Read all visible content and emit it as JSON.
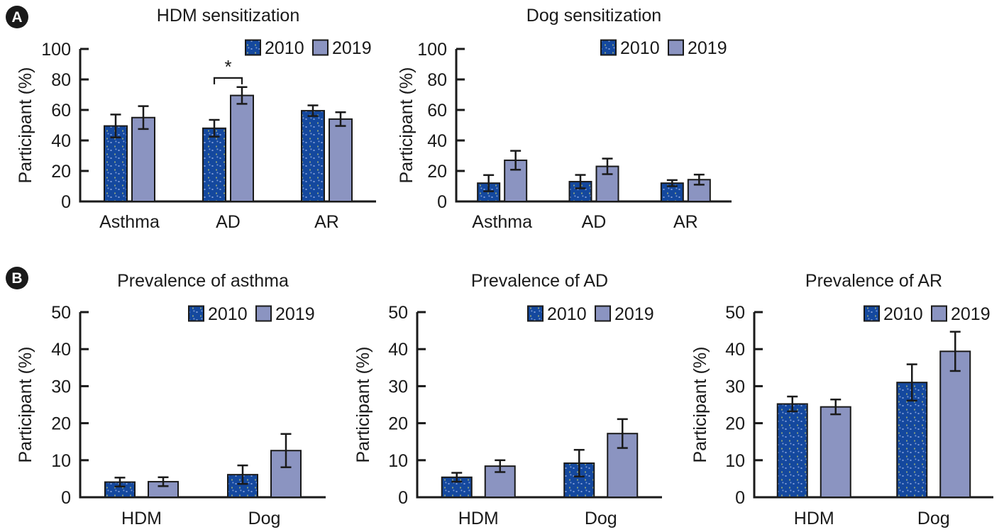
{
  "figure": {
    "background": "#ffffff",
    "panels": [
      {
        "id": "A",
        "label": "A"
      },
      {
        "id": "B",
        "label": "B"
      }
    ]
  },
  "colors": {
    "series_2010_fill": "#14489e",
    "series_2010_dot": "#7f9cd6",
    "series_2010_dot_alt": "#8aa07f",
    "series_2019_fill": "#8b94c1",
    "bar_outline": "#1a1a1a",
    "axis": "#1a1a1a",
    "text": "#1a1a1a",
    "badge_bg": "#1a1a1a",
    "badge_text": "#ffffff"
  },
  "chart_data": [
    {
      "id": "hdm-sensitization",
      "panel": "A",
      "type": "bar",
      "title": "HDM sensitization",
      "ylabel": "Participant (%)",
      "ylim": [
        0,
        100
      ],
      "ytick_step": 20,
      "grid": false,
      "legend_position": "top-right",
      "categories": [
        "Asthma",
        "AD",
        "AR"
      ],
      "series": [
        {
          "name": "2010",
          "values": [
            49.5,
            48,
            59.5
          ],
          "errors": [
            7.5,
            5.5,
            3.5
          ]
        },
        {
          "name": "2019",
          "values": [
            55,
            69.5,
            54
          ],
          "errors": [
            7.5,
            5.5,
            4.5
          ]
        }
      ],
      "significance": [
        {
          "category": "AD",
          "label": "*",
          "bracket_y": 81
        }
      ]
    },
    {
      "id": "dog-sensitization",
      "panel": "A",
      "type": "bar",
      "title": "Dog sensitization",
      "ylabel": "Participant (%)",
      "ylim": [
        0,
        100
      ],
      "ytick_step": 20,
      "grid": false,
      "legend_position": "top-right",
      "categories": [
        "Asthma",
        "AD",
        "AR"
      ],
      "series": [
        {
          "name": "2010",
          "values": [
            12,
            13,
            12
          ],
          "errors": [
            5.3,
            4.4,
            2
          ]
        },
        {
          "name": "2019",
          "values": [
            27,
            23,
            14.3
          ],
          "errors": [
            6.2,
            5.1,
            3.3
          ]
        }
      ],
      "significance": []
    },
    {
      "id": "prevalence-of-asthma",
      "panel": "B",
      "type": "bar",
      "title": "Prevalence of asthma",
      "ylabel": "Participant (%)",
      "ylim": [
        0,
        50
      ],
      "ytick_step": 10,
      "grid": false,
      "legend_position": "top-right",
      "categories": [
        "HDM",
        "Dog"
      ],
      "series": [
        {
          "name": "2010",
          "values": [
            4.1,
            6.1
          ],
          "errors": [
            1.2,
            2.5
          ]
        },
        {
          "name": "2019",
          "values": [
            4.2,
            12.6
          ],
          "errors": [
            1.2,
            4.5
          ]
        }
      ],
      "significance": []
    },
    {
      "id": "prevalence-of-ad",
      "panel": "B",
      "type": "bar",
      "title": "Prevalence of AD",
      "ylabel": "Participant (%)",
      "ylim": [
        0,
        50
      ],
      "ytick_step": 10,
      "grid": false,
      "legend_position": "top-right",
      "categories": [
        "HDM",
        "Dog"
      ],
      "series": [
        {
          "name": "2010",
          "values": [
            5.4,
            9.2
          ],
          "errors": [
            1.2,
            3.6
          ]
        },
        {
          "name": "2019",
          "values": [
            8.4,
            17.2
          ],
          "errors": [
            1.6,
            3.9
          ]
        }
      ],
      "significance": []
    },
    {
      "id": "prevalence-of-ar",
      "panel": "B",
      "type": "bar",
      "title": "Prevalence of AR",
      "ylabel": "Participant (%)",
      "ylim": [
        0,
        50
      ],
      "ytick_step": 10,
      "grid": false,
      "legend_position": "top-right",
      "categories": [
        "HDM",
        "Dog"
      ],
      "series": [
        {
          "name": "2010",
          "values": [
            25.2,
            31
          ],
          "errors": [
            2,
            4.9
          ]
        },
        {
          "name": "2019",
          "values": [
            24.4,
            39.4
          ],
          "errors": [
            2,
            5.3
          ]
        }
      ],
      "significance": []
    }
  ]
}
